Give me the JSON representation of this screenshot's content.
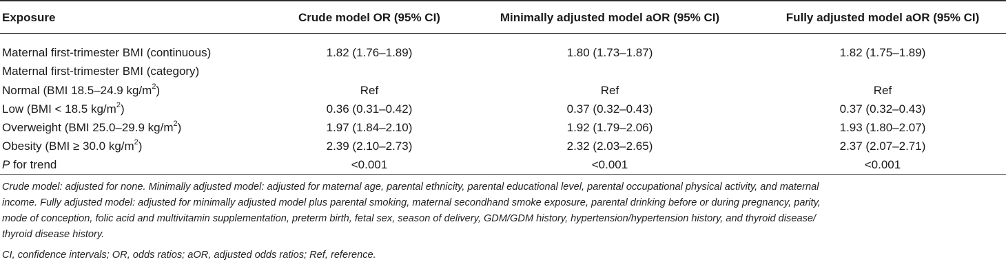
{
  "table": {
    "headers": [
      "Exposure",
      "Crude model OR (95% CI)",
      "Minimally adjusted model aOR (95% CI)",
      "Fully adjusted model aOR (95% CI)"
    ],
    "rows": [
      {
        "label": "Maternal first-trimester BMI (continuous)",
        "unit": "",
        "label_tail": "",
        "crude": "1.82 (1.76–1.89)",
        "min": "1.80 (1.73–1.87)",
        "full": "1.82 (1.75–1.89)"
      },
      {
        "label": "Maternal first-trimester BMI (category)",
        "unit": "",
        "label_tail": "",
        "crude": "",
        "min": "",
        "full": ""
      },
      {
        "label": "Normal (BMI 18.5–24.9 kg/m",
        "unit": "2",
        "label_tail": ")",
        "crude": "Ref",
        "min": "Ref",
        "full": "Ref"
      },
      {
        "label": "Low (BMI < 18.5 kg/m",
        "unit": "2",
        "label_tail": ")",
        "crude": "0.36 (0.31–0.42)",
        "min": "0.37 (0.32–0.43)",
        "full": "0.37 (0.32–0.43)"
      },
      {
        "label": "Overweight (BMI 25.0–29.9 kg/m",
        "unit": "2",
        "label_tail": ")",
        "crude": "1.97 (1.84–2.10)",
        "min": "1.92 (1.79–2.06)",
        "full": "1.93 (1.80–2.07)"
      },
      {
        "label": "Obesity (BMI ≥ 30.0 kg/m",
        "unit": "2",
        "label_tail": ")",
        "crude": "2.39 (2.10–2.73)",
        "min": "2.32 (2.03–2.65)",
        "full": "2.37 (2.07–2.71)"
      },
      {
        "label": "P",
        "unit": "",
        "label_tail": " for trend",
        "crude": "<0.001",
        "min": "<0.001",
        "full": "<0.001"
      }
    ]
  },
  "footnotes": {
    "line1": "Crude model: adjusted for none. Minimally adjusted model: adjusted for maternal age, parental ethnicity, parental educational level, parental occupational physical activity, and maternal",
    "line2": "income. Fully adjusted model: adjusted for minimally adjusted model plus parental smoking, maternal secondhand smoke exposure, parental drinking before or during pregnancy, parity,",
    "line3": "mode of conception, folic acid and multivitamin supplementation, preterm birth, fetal sex, season of delivery, GDM/GDM history, hypertension/hypertension history, and thyroid disease/",
    "line4": "thyroid disease history.",
    "abbreviations": "CI, confidence intervals; OR, odds ratios; aOR, adjusted odds ratios; Ref, reference."
  }
}
